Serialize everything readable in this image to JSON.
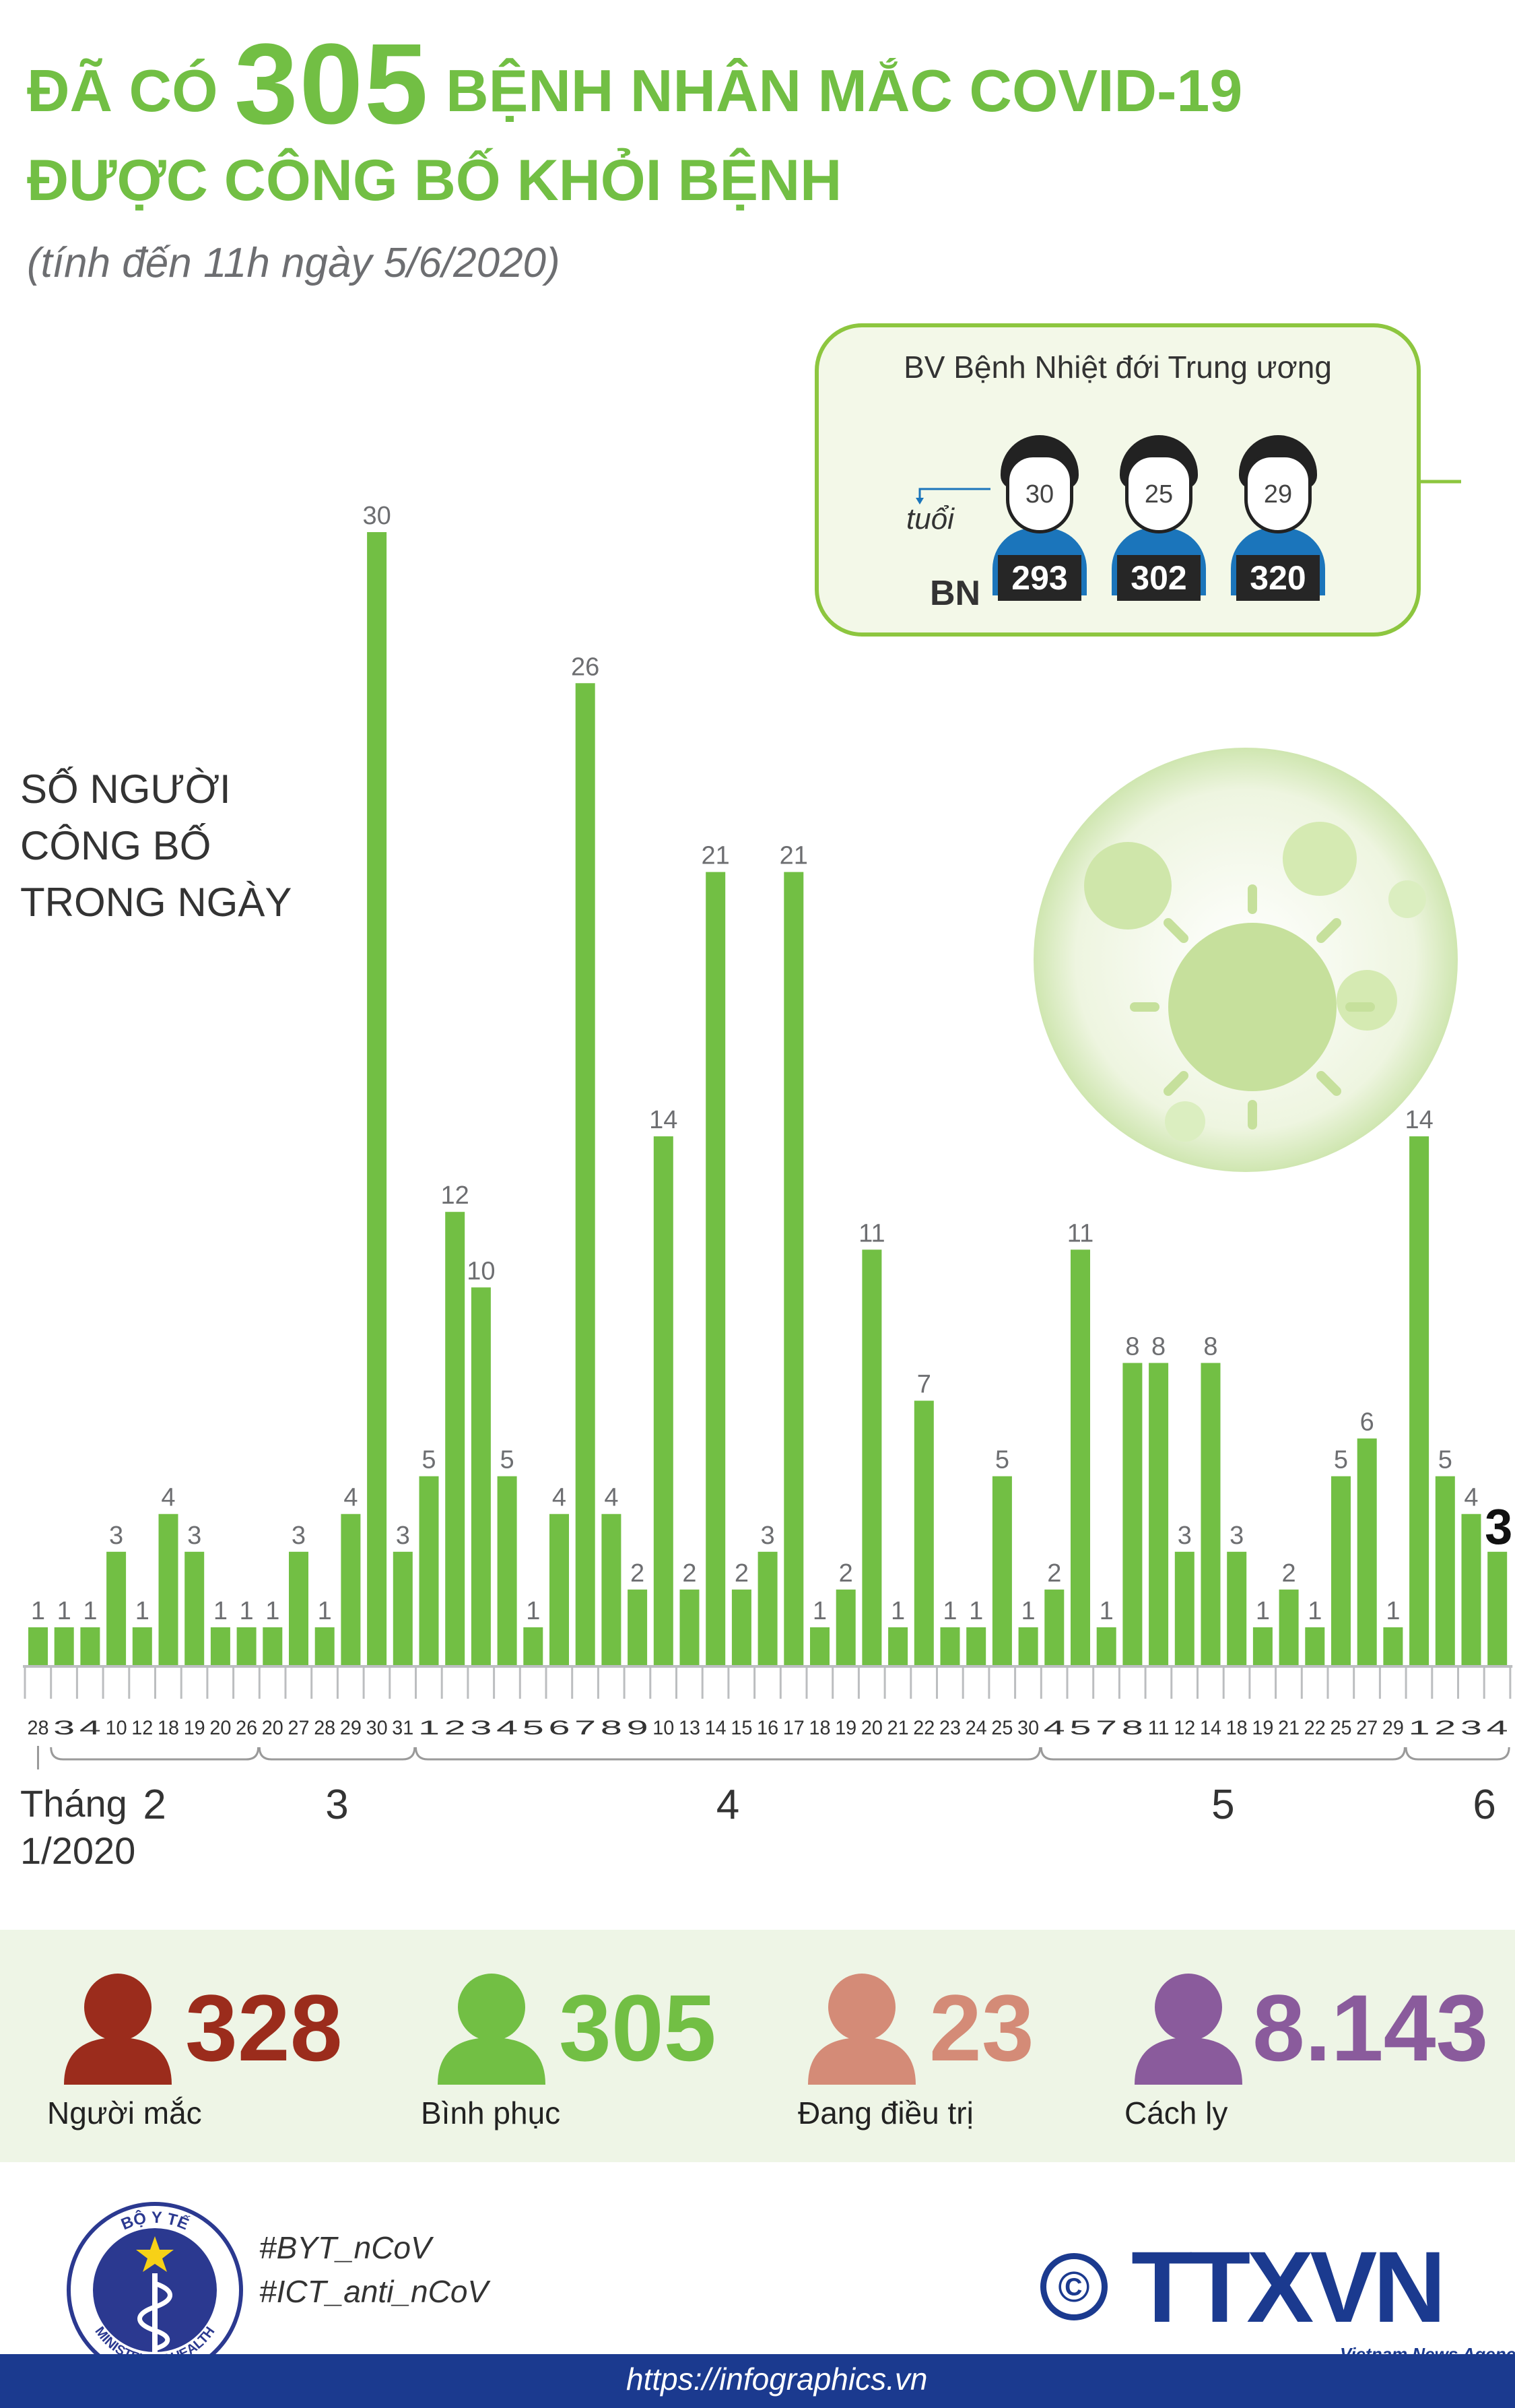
{
  "header": {
    "title_part1": "ĐÃ CÓ",
    "title_number": "305",
    "title_part2": "BỆNH NHÂN MẮC COVID-19",
    "title_line2": "ĐƯỢC CÔNG BỐ KHỎI BỆNH",
    "subtitle": "(tính đến 11h ngày 5/6/2020)"
  },
  "ylabel_lines": [
    "SỐ NGƯỜI",
    "CÔNG BỐ",
    "TRONG NGÀY"
  ],
  "callout": {
    "hospital": "BV Bệnh Nhiệt đới Trung ương",
    "age_label": "tuổi",
    "bn_label": "BN",
    "patients": [
      {
        "age": "30",
        "id": "293"
      },
      {
        "age": "25",
        "id": "302"
      },
      {
        "age": "29",
        "id": "320"
      }
    ]
  },
  "chart_data": {
    "type": "bar",
    "categories": [
      "28",
      "3",
      "4",
      "10",
      "12",
      "18",
      "19",
      "20",
      "26",
      "20",
      "27",
      "28",
      "29",
      "30",
      "31",
      "1",
      "2",
      "3",
      "4",
      "5",
      "6",
      "7",
      "8",
      "9",
      "10",
      "13",
      "14",
      "15",
      "16",
      "17",
      "18",
      "19",
      "20",
      "21",
      "22",
      "23",
      "24",
      "25",
      "30",
      "4",
      "5",
      "7",
      "8",
      "11",
      "12",
      "14",
      "18",
      "19",
      "21",
      "22",
      "25",
      "27",
      "29",
      "1",
      "2",
      "3",
      "4"
    ],
    "values": [
      1,
      1,
      1,
      3,
      1,
      4,
      3,
      1,
      1,
      1,
      3,
      1,
      4,
      30,
      3,
      5,
      12,
      10,
      5,
      1,
      4,
      26,
      4,
      2,
      14,
      2,
      21,
      2,
      3,
      21,
      1,
      2,
      11,
      1,
      7,
      1,
      1,
      5,
      1,
      2,
      11,
      1,
      8,
      8,
      3,
      8,
      3,
      1,
      2,
      1,
      5,
      6,
      1,
      14,
      5,
      4,
      3
    ],
    "months": [
      {
        "label": "Tháng 1/2020",
        "start": 0,
        "end": 0
      },
      {
        "label": "2",
        "start": 1,
        "end": 8
      },
      {
        "label": "3",
        "start": 9,
        "end": 14
      },
      {
        "label": "4",
        "start": 15,
        "end": 38
      },
      {
        "label": "5",
        "start": 39,
        "end": 52
      },
      {
        "label": "6",
        "start": 53,
        "end": 56
      }
    ],
    "highlight_index": 56,
    "bar_color": "#72bf44",
    "ylim": [
      0,
      30
    ]
  },
  "stats": [
    {
      "value": "328",
      "label": "Người mắc",
      "color": "#9b2c1c"
    },
    {
      "value": "305",
      "label": "Bình phục",
      "color": "#72bf44"
    },
    {
      "value": "23",
      "label": "Đang điều trị",
      "color": "#d48b77"
    },
    {
      "value": "8.143",
      "label": "Cách ly",
      "color": "#8a5b9c"
    }
  ],
  "footer": {
    "hashtags": [
      "#BYT_nCoV",
      "#ICT_anti_nCoV"
    ],
    "url": "https://infographics.vn",
    "copyright": "©",
    "agency": "TTXVN",
    "agency_sub": "Vietnam News Agency",
    "ministry_top": "BỘ Y TẾ",
    "ministry_bottom": "MINISTRY OF HEALTH"
  }
}
